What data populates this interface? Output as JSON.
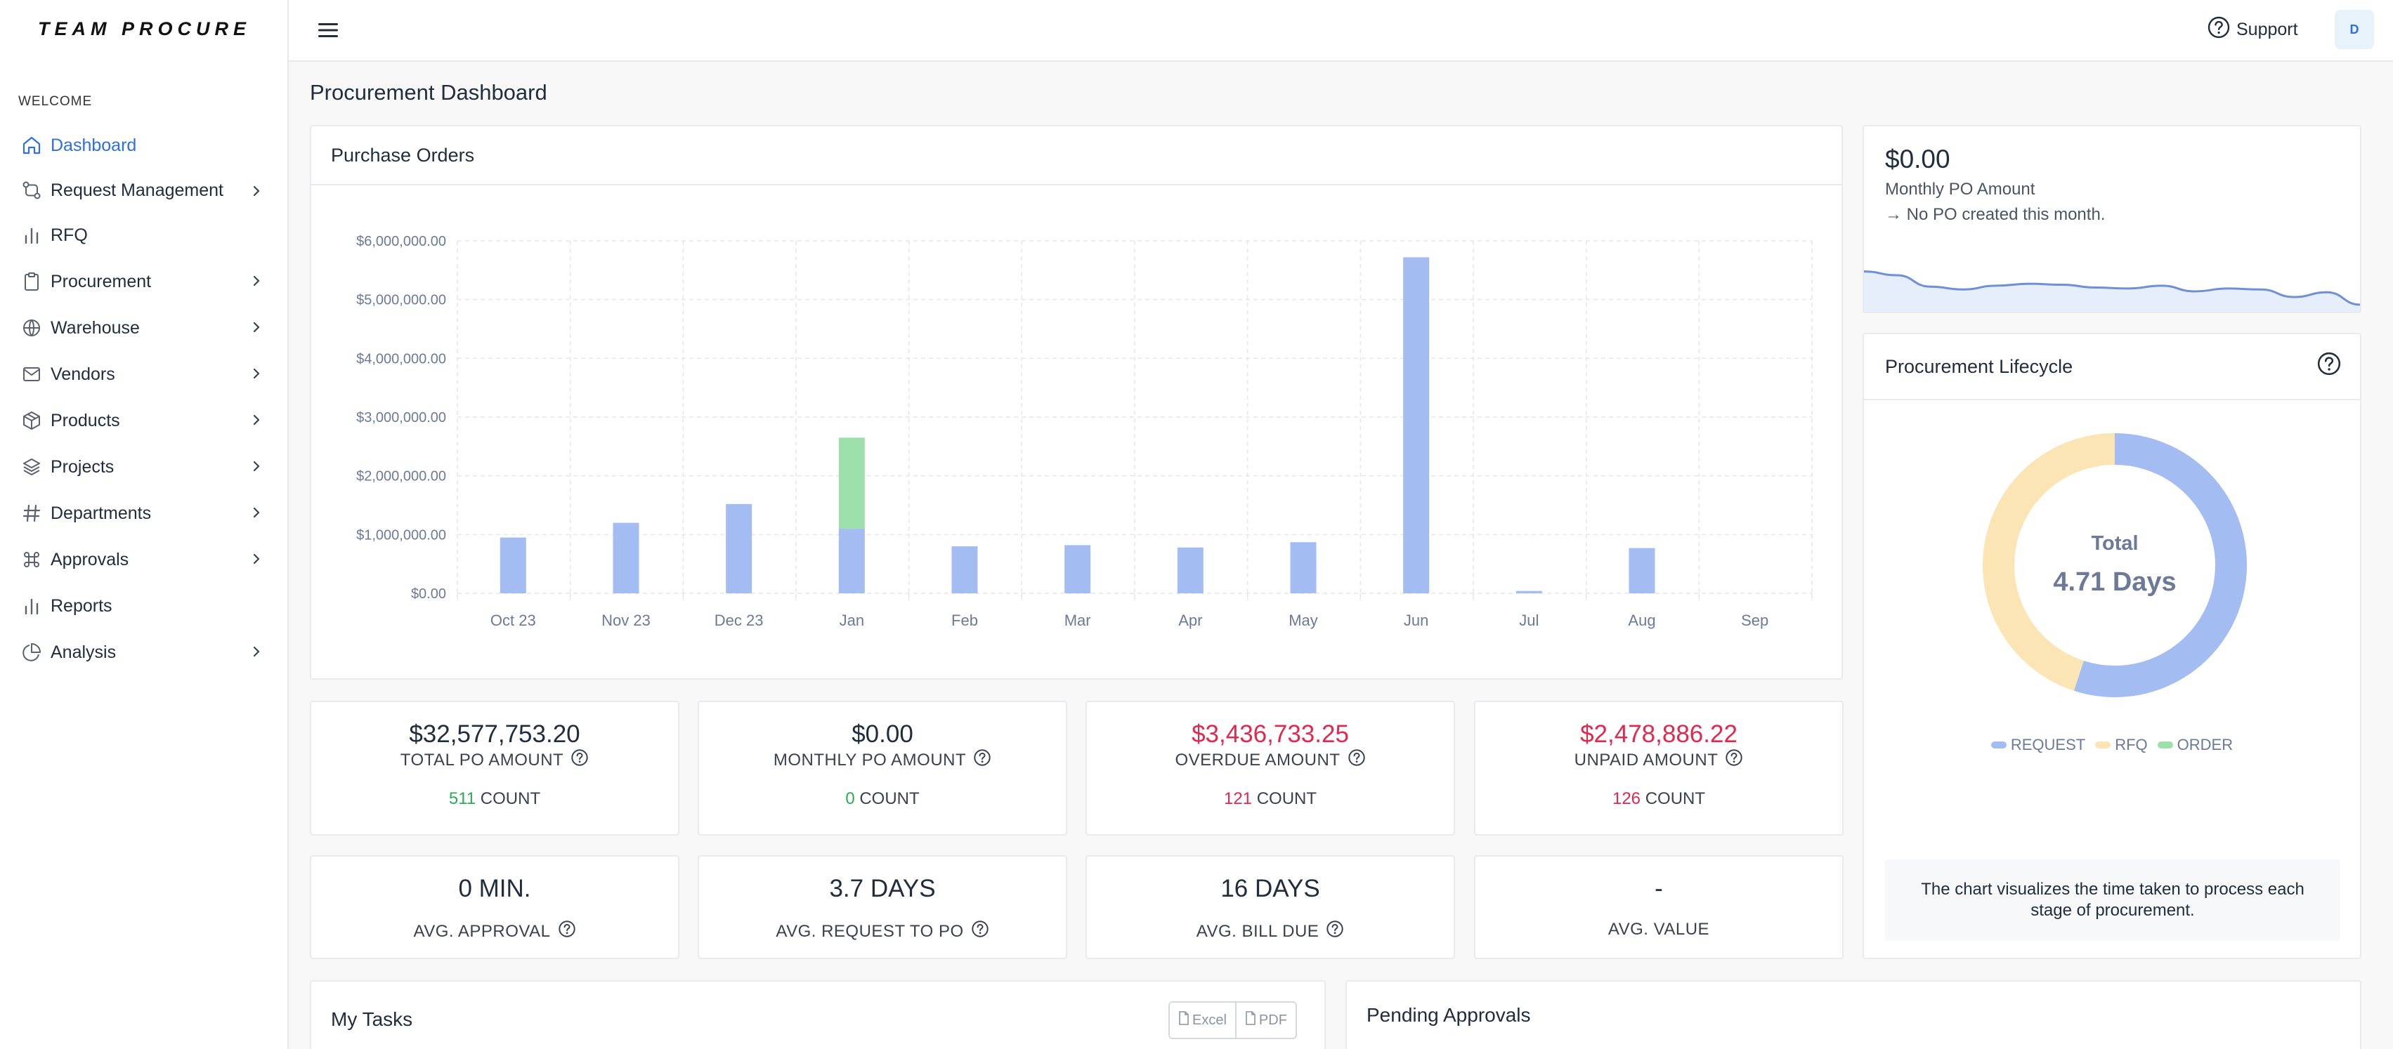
{
  "brand": {
    "logo_text": "TEAM PROCURE"
  },
  "sidebar": {
    "section_label": "WELCOME",
    "items": [
      {
        "label": "Dashboard",
        "icon": "home-icon",
        "active": true,
        "has_children": false
      },
      {
        "label": "Request Management",
        "icon": "git-compare-icon",
        "active": false,
        "has_children": true
      },
      {
        "label": "RFQ",
        "icon": "bar-chart-icon",
        "active": false,
        "has_children": false
      },
      {
        "label": "Procurement",
        "icon": "clipboard-icon",
        "active": false,
        "has_children": true
      },
      {
        "label": "Warehouse",
        "icon": "globe-icon",
        "active": false,
        "has_children": true
      },
      {
        "label": "Vendors",
        "icon": "mail-icon",
        "active": false,
        "has_children": true
      },
      {
        "label": "Products",
        "icon": "package-icon",
        "active": false,
        "has_children": true
      },
      {
        "label": "Projects",
        "icon": "layers-icon",
        "active": false,
        "has_children": true
      },
      {
        "label": "Departments",
        "icon": "hash-icon",
        "active": false,
        "has_children": true
      },
      {
        "label": "Approvals",
        "icon": "command-icon",
        "active": false,
        "has_children": true
      },
      {
        "label": "Reports",
        "icon": "bar-chart-icon",
        "active": false,
        "has_children": false
      },
      {
        "label": "Analysis",
        "icon": "pie-chart-icon",
        "active": false,
        "has_children": true
      }
    ]
  },
  "header": {
    "support_label": "Support",
    "avatar_initial": "D"
  },
  "page": {
    "title": "Procurement Dashboard"
  },
  "purchase_orders": {
    "title": "Purchase Orders"
  },
  "kpis": [
    {
      "value": "$32,577,753.20",
      "label": "TOTAL PO AMOUNT",
      "count": "511",
      "count_suffix": "COUNT",
      "value_color": "default",
      "count_color": "green"
    },
    {
      "value": "$0.00",
      "label": "MONTHLY PO AMOUNT",
      "count": "0",
      "count_suffix": "COUNT",
      "value_color": "default",
      "count_color": "green"
    },
    {
      "value": "$3,436,733.25",
      "label": "OVERDUE AMOUNT",
      "count": "121",
      "count_suffix": "COUNT",
      "value_color": "red",
      "count_color": "red"
    },
    {
      "value": "$2,478,886.22",
      "label": "UNPAID AMOUNT",
      "count": "126",
      "count_suffix": "COUNT",
      "value_color": "red",
      "count_color": "red"
    }
  ],
  "kpis_avg": [
    {
      "value": "0 MIN.",
      "label": "AVG. APPROVAL",
      "help": true
    },
    {
      "value": "3.7 DAYS",
      "label": "AVG. REQUEST TO PO",
      "help": true
    },
    {
      "value": "16 DAYS",
      "label": "AVG. BILL DUE",
      "help": true
    },
    {
      "value": "-",
      "label": "AVG. VALUE",
      "help": false
    }
  ],
  "monthly": {
    "value": "$0.00",
    "label": "Monthly PO Amount",
    "note": "→ No PO created this month."
  },
  "lifecycle": {
    "title": "Procurement Lifecycle",
    "center_label": "Total",
    "center_value": "4.71 Days",
    "legend": [
      "REQUEST",
      "RFQ",
      "ORDER"
    ],
    "note": "The chart visualizes the time taken to process each stage of procurement."
  },
  "tasks": {
    "title": "My Tasks",
    "excel_label": "Excel",
    "pdf_label": "PDF"
  },
  "approvals": {
    "title": "Pending Approvals"
  },
  "colors": {
    "accent": "#2f6fde",
    "bar_blue": "#a3bdf3",
    "bar_green": "#9ee0ab",
    "rfq_yellow": "#fbe5b4",
    "red": "#e0294f",
    "green": "#2eaa56"
  },
  "chart_data": [
    {
      "type": "bar",
      "title": "Purchase Orders",
      "categories": [
        "Oct 23",
        "Nov 23",
        "Dec 23",
        "Jan",
        "Feb",
        "Mar",
        "Apr",
        "May",
        "Jun",
        "Jul",
        "Aug",
        "Sep"
      ],
      "series": [
        {
          "values": [
            950000,
            1200000,
            1520000,
            1100000,
            800000,
            820000,
            780000,
            870000,
            5720000,
            40000,
            770000,
            0
          ]
        },
        {
          "values": [
            0,
            0,
            0,
            1550000,
            0,
            0,
            0,
            0,
            0,
            0,
            0,
            0
          ]
        }
      ],
      "stacked": true,
      "ylim": [
        0,
        6000000
      ],
      "y_ticks": [
        "$0.00",
        "$1,000,000.00",
        "$2,000,000.00",
        "$3,000,000.00",
        "$4,000,000.00",
        "$5,000,000.00",
        "$6,000,000.00"
      ],
      "grid": true
    },
    {
      "type": "pie",
      "title": "Procurement Lifecycle",
      "categories": [
        "REQUEST",
        "RFQ",
        "ORDER"
      ],
      "values": [
        55,
        45,
        0
      ],
      "donut": true
    },
    {
      "type": "area",
      "title": "Monthly PO Amount",
      "values": [
        44,
        40,
        28,
        25,
        29,
        31,
        30,
        27,
        26,
        29,
        23,
        26,
        25,
        17,
        22,
        9
      ],
      "axes": false
    }
  ]
}
